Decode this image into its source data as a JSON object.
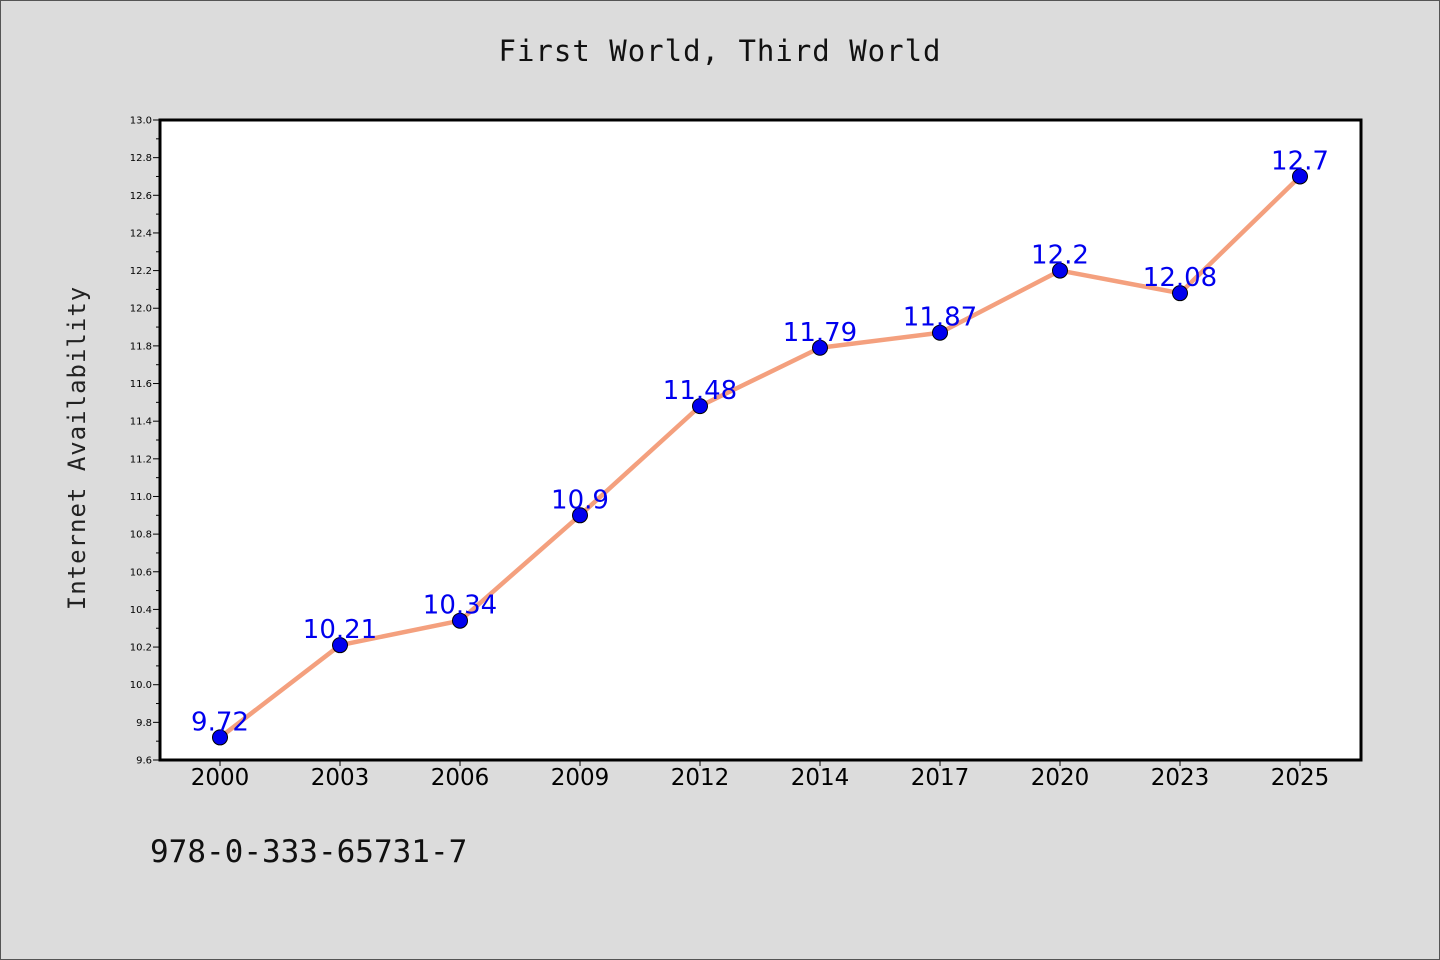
{
  "title": "First World, Third World",
  "footer_code": "978-0-333-65731-7",
  "colors": {
    "background": "#dcdcdc",
    "plot_background": "#ffffff",
    "line": "#f4a07e",
    "marker": "#0000ee",
    "data_label": "#0000ee"
  },
  "chart_data": {
    "type": "line",
    "title": "First World, Third World",
    "xlabel": "",
    "ylabel": "Internet Availability",
    "categories": [
      "2000",
      "2003",
      "2006",
      "2009",
      "2012",
      "2014",
      "2017",
      "2020",
      "2023",
      "2025"
    ],
    "series": [
      {
        "values": [
          9.72,
          10.21,
          10.34,
          10.9,
          11.48,
          11.79,
          11.87,
          12.2,
          12.08,
          12.7
        ],
        "labels": [
          "9.72",
          "10.21",
          "10.34",
          "10.9",
          "11.48",
          "11.79",
          "11.87",
          "12.2",
          "12.08",
          "12.7"
        ]
      }
    ],
    "ylim": [
      9.6,
      13.0
    ],
    "yticks": [
      "9.6",
      "9.8",
      "10.0",
      "10.2",
      "10.4",
      "10.6",
      "10.8",
      "11.0",
      "11.2",
      "11.4",
      "11.6",
      "11.8",
      "12.0",
      "12.2",
      "12.4",
      "12.6",
      "12.8",
      "13.0"
    ],
    "grid": false,
    "legend": "none"
  }
}
